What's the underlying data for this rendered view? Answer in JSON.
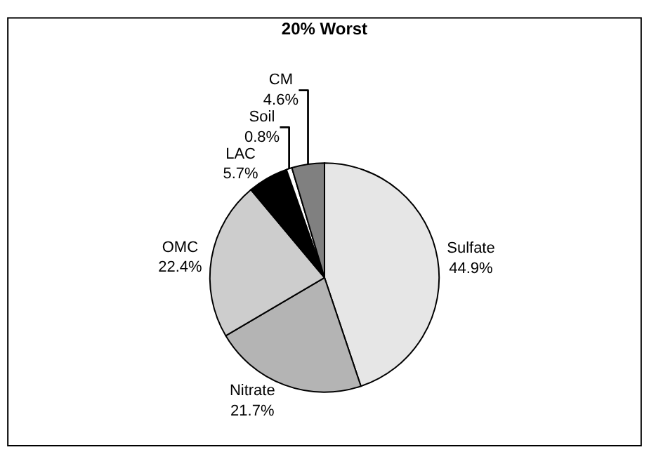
{
  "chart_data": {
    "type": "pie",
    "title": "20% Worst",
    "categories": [
      "Sulfate",
      "Nitrate",
      "OMC",
      "LAC",
      "Soil",
      "CM"
    ],
    "values": [
      44.9,
      21.7,
      22.4,
      5.7,
      0.8,
      4.6
    ],
    "value_labels": [
      "44.9%",
      "21.7%",
      "22.4%",
      "5.7%",
      "0.8%",
      "4.6%"
    ],
    "colors": [
      "#e6e6e6",
      "#b4b4b4",
      "#cdcdcd",
      "#000000",
      "#ffffff",
      "#808080"
    ],
    "legend": false
  }
}
